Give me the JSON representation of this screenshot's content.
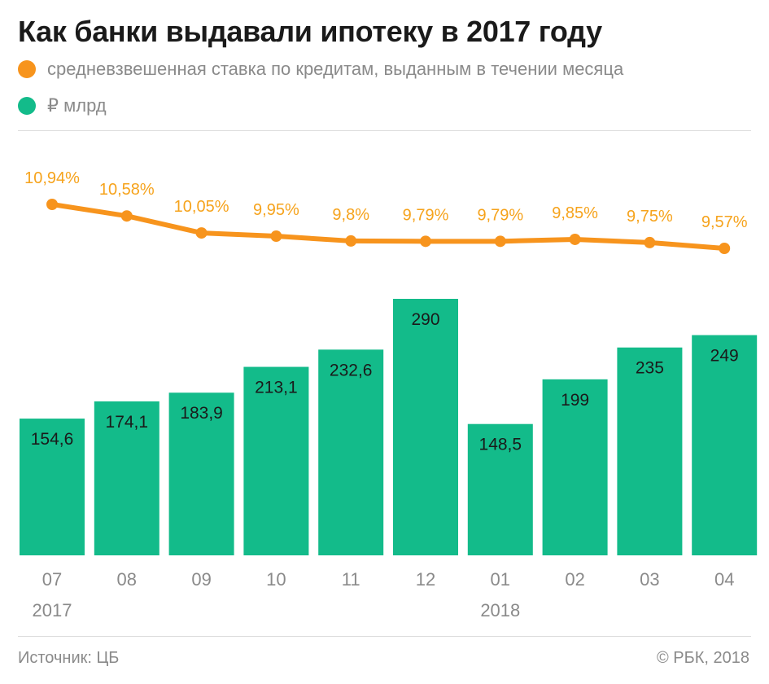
{
  "title": "Как банки выдавали ипотеку в 2017 году",
  "legend": [
    {
      "label": "средневзвешенная ставка по кредитам, выданным в течении месяца",
      "color": "#f7941d",
      "icon": "orange-circle"
    },
    {
      "label": "₽ млрд",
      "color": "#13bb8a",
      "icon": "green-circle"
    }
  ],
  "footer": {
    "source": "Источник: ЦБ",
    "copyright": "© РБК, 2018"
  },
  "chart_data": {
    "type": "bar",
    "categories": [
      "07",
      "08",
      "09",
      "10",
      "11",
      "12",
      "01",
      "02",
      "03",
      "04"
    ],
    "year_labels": [
      {
        "index": 0,
        "label": "2017"
      },
      {
        "index": 6,
        "label": "2018"
      }
    ],
    "series": [
      {
        "type": "bar",
        "values": [
          154.6,
          174.1,
          183.9,
          213.1,
          232.6,
          290,
          148.5,
          199,
          235,
          249
        ],
        "value_labels": [
          "154,6",
          "174,1",
          "183,9",
          "213,1",
          "232,6",
          "290",
          "148,5",
          "199",
          "235",
          "249"
        ],
        "color": "#13bb8a"
      },
      {
        "type": "line",
        "values": [
          10.94,
          10.58,
          10.05,
          9.95,
          9.8,
          9.79,
          9.79,
          9.85,
          9.75,
          9.57
        ],
        "value_labels": [
          "10,94%",
          "10,58%",
          "10,05%",
          "9,95%",
          "9,8%",
          "9,79%",
          "9,79%",
          "9,85%",
          "9,75%",
          "9,57%"
        ],
        "color": "#f7941d"
      }
    ],
    "ylim": [
      0,
      290
    ],
    "grid": false
  }
}
